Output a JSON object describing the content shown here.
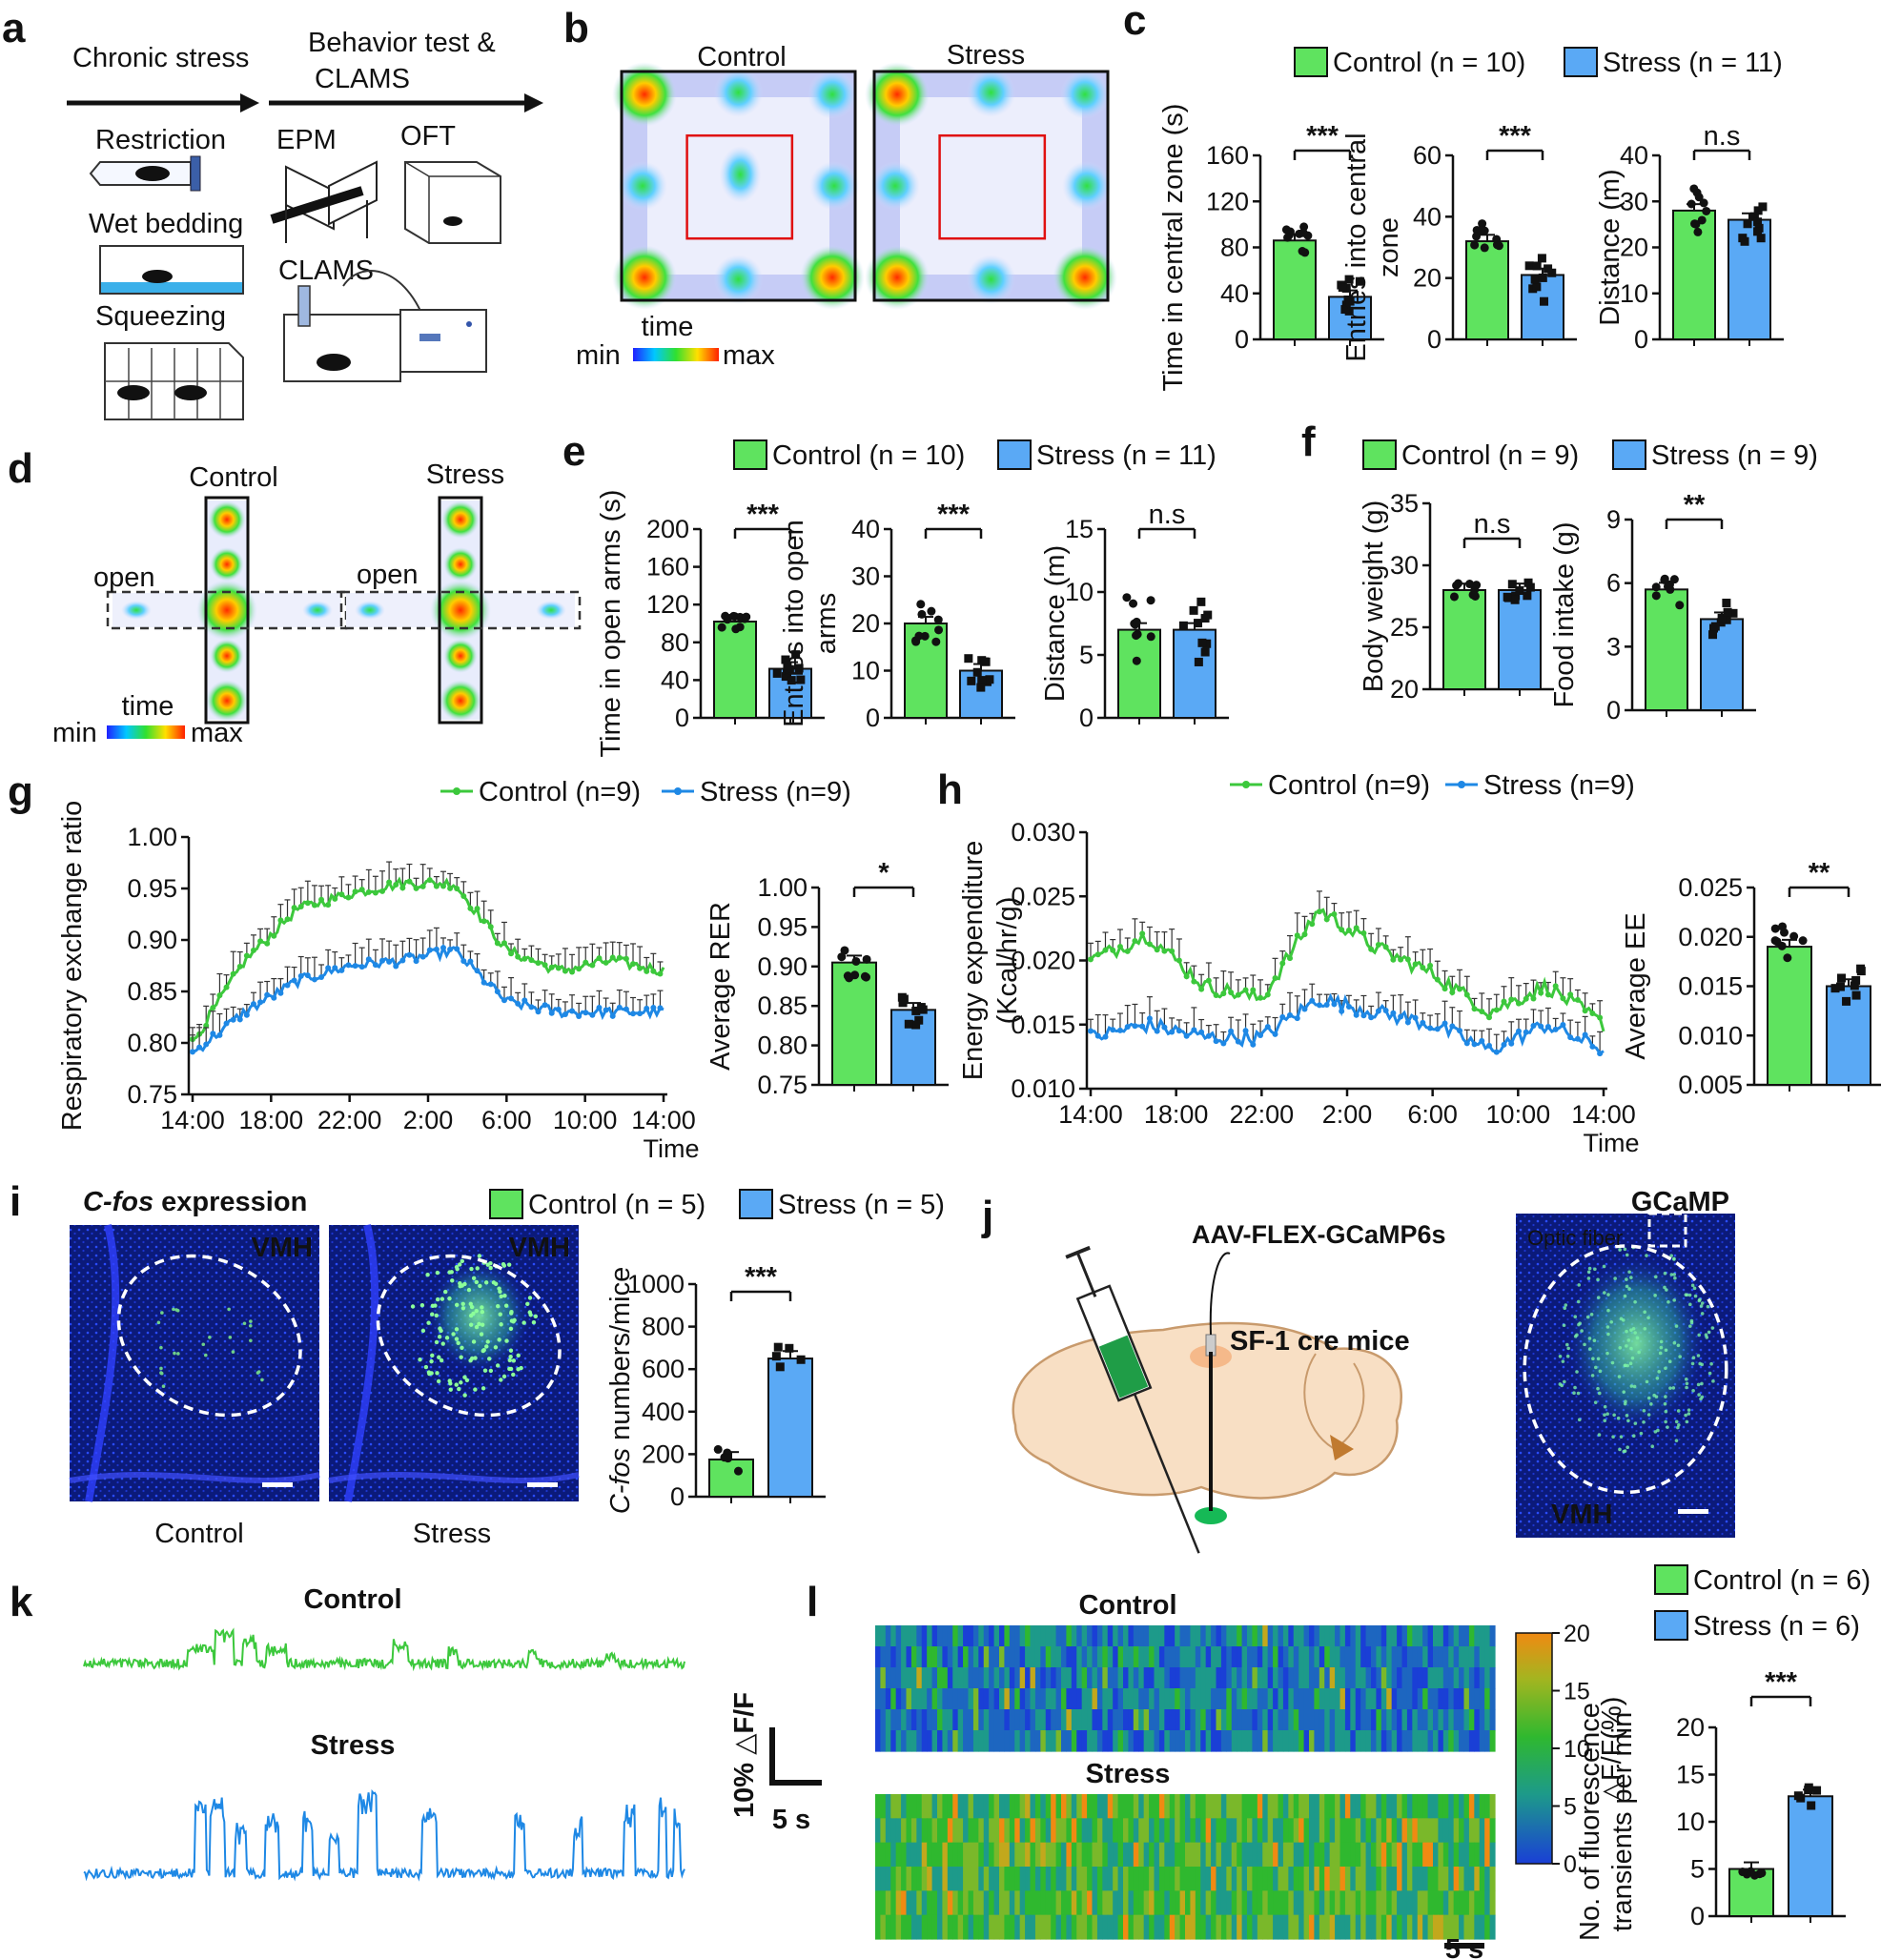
{
  "colors": {
    "control": "#5fe35f",
    "stress": "#5aa9f5",
    "control_line": "#3cc83c",
    "stress_line": "#1e88e5"
  },
  "panels": {
    "a": {
      "label": "a",
      "chronic_stress": "Chronic stress",
      "behavior_line1": "Behavior test &",
      "behavior_line2": "CLAMS",
      "restriction": "Restriction",
      "wet_bedding": "Wet bedding",
      "squeezing": "Squeezing",
      "epm": "EPM",
      "oft": "OFT",
      "clams": "CLAMS"
    },
    "b": {
      "label": "b",
      "control": "Control",
      "stress": "Stress",
      "time": "time",
      "min": "min",
      "max": "max"
    },
    "d": {
      "label": "d",
      "control": "Control",
      "stress": "Stress",
      "open1": "open",
      "open2": "open",
      "time": "time",
      "min": "min",
      "max": "max"
    },
    "i": {
      "label": "i",
      "title_italic": "C-fos",
      "title_rest": " expression",
      "vmh": "VMH",
      "vmh2": "VMH",
      "control": "Control",
      "stress": "Stress"
    },
    "j": {
      "label": "j",
      "virus": "AAV-FLEX-GCaMP6s",
      "mice": "SF-1 cre mice",
      "gcamp": "GCaMP",
      "optic": "Optic fiber",
      "vmh": "VMH"
    },
    "k": {
      "label": "k",
      "control": "Control",
      "stress": "Stress",
      "scale_y": "10% △F/F",
      "scale_x": "5 s"
    },
    "l_heat": {
      "label": "l",
      "control": "Control",
      "stress": "Stress",
      "colorbar_label": "△F/F(%)",
      "colorbar_ticks": [
        "20",
        "15",
        "10",
        "5",
        "0"
      ],
      "scale": "5 s"
    }
  },
  "chart_data": [
    {
      "id": "c1",
      "type": "bar",
      "panel_label": "c",
      "legend": [
        "Control (n = 10)",
        "Stress (n = 11)"
      ],
      "ylabel": "Time in central zone (s)",
      "ylim": [
        0,
        160
      ],
      "yticks": [
        "0",
        "40",
        "80",
        "120",
        "160"
      ],
      "values": [
        86,
        37
      ],
      "sig": "***"
    },
    {
      "id": "c2",
      "type": "bar",
      "ylabel_lines": [
        "Entries into central",
        "zone"
      ],
      "ylim": [
        0,
        60
      ],
      "yticks": [
        "0",
        "20",
        "40",
        "60"
      ],
      "values": [
        32,
        21
      ],
      "sig": "***"
    },
    {
      "id": "c3",
      "type": "bar",
      "ylabel": "Distance (m)",
      "ylim": [
        0,
        40
      ],
      "yticks": [
        "0",
        "10",
        "20",
        "30",
        "40"
      ],
      "values": [
        28,
        26
      ],
      "sig": "n.s"
    },
    {
      "id": "e1",
      "type": "bar",
      "panel_label": "e",
      "legend": [
        "Control (n = 10)",
        "Stress (n = 11)"
      ],
      "ylabel": "Time in open arms (s)",
      "ylim": [
        0,
        200
      ],
      "yticks": [
        "0",
        "40",
        "80",
        "120",
        "160",
        "200"
      ],
      "values": [
        102,
        52
      ],
      "sig": "***"
    },
    {
      "id": "e2",
      "type": "bar",
      "ylabel_lines": [
        "Entries into open",
        "arms"
      ],
      "ylim": [
        0,
        40
      ],
      "yticks": [
        "0",
        "10",
        "20",
        "30",
        "40"
      ],
      "values": [
        20,
        10
      ],
      "sig": "***"
    },
    {
      "id": "e3",
      "type": "bar",
      "ylabel": "Distance (m)",
      "ylim": [
        0,
        15
      ],
      "yticks": [
        "0",
        "5",
        "10",
        "15"
      ],
      "values": [
        7,
        7
      ],
      "sig": "n.s"
    },
    {
      "id": "f1",
      "type": "bar",
      "panel_label": "f",
      "legend": [
        "Control (n = 9)",
        "Stress (n = 9)"
      ],
      "ylabel": "Body weight (g)",
      "ylim": [
        20,
        35
      ],
      "yticks": [
        "20",
        "25",
        "30",
        "35"
      ],
      "values": [
        28,
        28
      ],
      "sig": "n.s"
    },
    {
      "id": "f2",
      "type": "bar",
      "ylabel": "Food intake (g)",
      "ylim": [
        0,
        9
      ],
      "yticks": [
        "0",
        "3",
        "6",
        "9"
      ],
      "values": [
        5.7,
        4.3
      ],
      "sig": "**"
    },
    {
      "id": "g",
      "type": "line",
      "panel_label": "g",
      "legend": [
        "Control (n=9)",
        "Stress (n=9)"
      ],
      "ylabel": "Respiratory exchange ratio",
      "xlabel": "Time",
      "ylim": [
        0.75,
        1.0
      ],
      "yticks": [
        "0.75",
        "0.80",
        "0.85",
        "0.90",
        "0.95",
        "1.00"
      ],
      "xticks": [
        "14:00",
        "18:00",
        "22:00",
        "2:00",
        "6:00",
        "10:00",
        "14:00"
      ],
      "control_approx": [
        0.8,
        0.88,
        0.93,
        0.945,
        0.955,
        0.955,
        0.89,
        0.87,
        0.88,
        0.87
      ],
      "stress_approx": [
        0.79,
        0.83,
        0.86,
        0.875,
        0.88,
        0.89,
        0.84,
        0.83,
        0.83,
        0.83
      ]
    },
    {
      "id": "g_bar",
      "type": "bar",
      "ylabel": "Average RER",
      "ylim": [
        0.75,
        1.0
      ],
      "yticks": [
        "0.75",
        "0.80",
        "0.85",
        "0.90",
        "0.95",
        "1.00"
      ],
      "values": [
        0.905,
        0.845
      ],
      "sig": "*"
    },
    {
      "id": "h",
      "type": "line",
      "panel_label": "h",
      "legend": [
        "Control (n=9)",
        "Stress (n=9)"
      ],
      "ylabel_lines": [
        "Energy expenditure",
        "(Kcal/hr/g)"
      ],
      "xlabel": "Time",
      "ylim": [
        0.01,
        0.03
      ],
      "yticks": [
        "0.010",
        "0.015",
        "0.020",
        "0.025",
        "0.030"
      ],
      "xticks": [
        "14:00",
        "18:00",
        "22:00",
        "2:00",
        "6:00",
        "10:00",
        "14:00"
      ],
      "control_approx": [
        0.02,
        0.022,
        0.018,
        0.017,
        0.024,
        0.021,
        0.019,
        0.016,
        0.018,
        0.015
      ],
      "stress_approx": [
        0.014,
        0.015,
        0.014,
        0.014,
        0.017,
        0.016,
        0.015,
        0.013,
        0.015,
        0.013
      ]
    },
    {
      "id": "h_bar",
      "type": "bar",
      "ylabel": "Average EE",
      "ylim": [
        0.005,
        0.025
      ],
      "yticks": [
        "0.005",
        "0.010",
        "0.015",
        "0.020",
        "0.025"
      ],
      "values": [
        0.019,
        0.015
      ],
      "sig": "**"
    },
    {
      "id": "i_bar",
      "type": "bar",
      "legend": [
        "Control (n = 5)",
        "Stress (n = 5)"
      ],
      "ylabel_italic": "C-fos",
      "ylabel_rest": " numbers/mice",
      "ylim": [
        0,
        1000
      ],
      "yticks": [
        "0",
        "200",
        "400",
        "600",
        "800",
        "1000"
      ],
      "values": [
        175,
        650
      ],
      "sig": "***"
    },
    {
      "id": "l_bar",
      "type": "bar",
      "legend": [
        "Control (n = 6)",
        "Stress (n = 6)"
      ],
      "ylabel_lines": [
        "No. of fluorescence",
        "transients per min"
      ],
      "ylim": [
        0,
        20
      ],
      "yticks": [
        "0",
        "5",
        "10",
        "15",
        "20"
      ],
      "values": [
        5,
        12.7
      ],
      "sig": "***"
    }
  ]
}
